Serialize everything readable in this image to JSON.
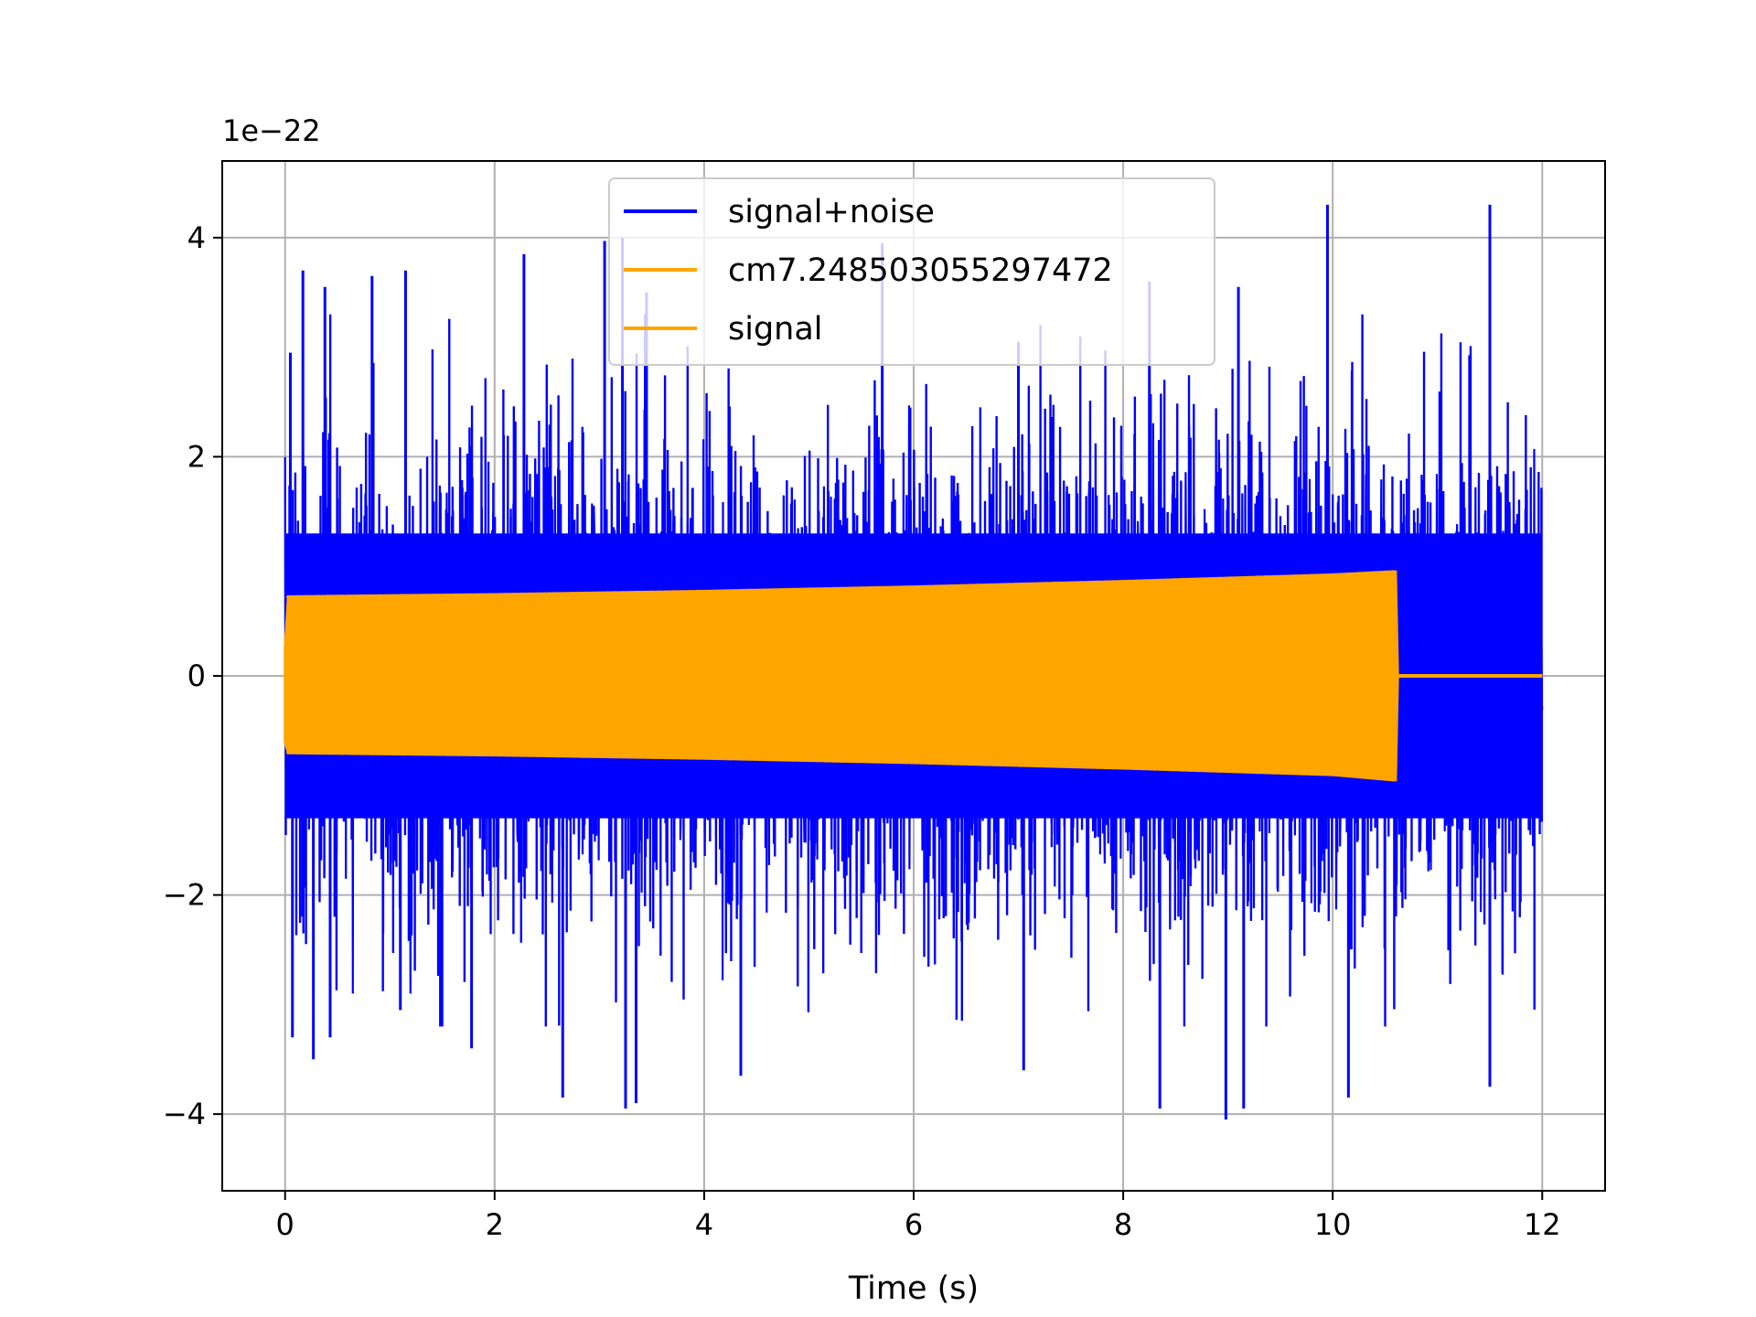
{
  "chart_data": {
    "type": "line",
    "xlabel": "Time (s)",
    "ylabel": "",
    "y_offset_label": "1e−22",
    "xlim": [
      -0.6,
      12.6
    ],
    "ylim": [
      -4.7,
      4.7
    ],
    "x_ticks": [
      0,
      2,
      4,
      6,
      8,
      10,
      12
    ],
    "y_ticks": [
      -4,
      -2,
      0,
      2,
      4
    ],
    "x_tick_labels": [
      "0",
      "2",
      "4",
      "6",
      "8",
      "10",
      "12"
    ],
    "y_tick_labels": [
      "−4",
      "−2",
      "0",
      "2",
      "4"
    ],
    "grid": true,
    "legend_position": "upper center",
    "series": [
      {
        "name": "signal+noise",
        "color": "#0000ff",
        "kind": "noise",
        "x_range": [
          0,
          12
        ],
        "typical_amplitude": 2.0,
        "max": 4.3,
        "min": -4.05,
        "values_note": "dense random noise, peaks shown below",
        "peaks_x": [
          0.05,
          0.17,
          0.38,
          0.83,
          1.15,
          2.28,
          3.05,
          3.22,
          3.45,
          5.7,
          7.0,
          8.25,
          9.1,
          9.95,
          11.5
        ],
        "peaks_y": [
          2.95,
          3.7,
          3.55,
          3.65,
          3.7,
          3.85,
          3.97,
          4.0,
          3.5,
          3.95,
          3.05,
          3.6,
          3.55,
          4.3,
          4.3
        ],
        "troughs_x": [
          0.07,
          0.27,
          0.43,
          1.1,
          1.78,
          2.65,
          3.25,
          3.35,
          4.35,
          7.05,
          8.35,
          8.98,
          9.15,
          10.15,
          11.5
        ],
        "troughs_y": [
          -3.3,
          -3.5,
          -3.3,
          -3.05,
          -3.4,
          -3.85,
          -3.95,
          -3.9,
          -3.65,
          -3.6,
          -3.95,
          -4.05,
          -3.95,
          -3.85,
          -3.75
        ]
      },
      {
        "name": "cm7.248503055297472",
        "color": "#ffa500",
        "kind": "envelope",
        "x": [
          0,
          0.03,
          1,
          2,
          4,
          6,
          8,
          10,
          10.6,
          10.62
        ],
        "upper": [
          0.25,
          0.72,
          0.73,
          0.74,
          0.77,
          0.81,
          0.86,
          0.92,
          0.95,
          0.0
        ],
        "lower": [
          -0.6,
          -0.7,
          -0.71,
          -0.72,
          -0.75,
          -0.79,
          -0.84,
          -0.9,
          -0.95,
          0.0
        ]
      },
      {
        "name": "signal",
        "color": "#ffa500",
        "kind": "flat",
        "x": [
          10.62,
          12
        ],
        "values": [
          0,
          0
        ]
      }
    ]
  }
}
